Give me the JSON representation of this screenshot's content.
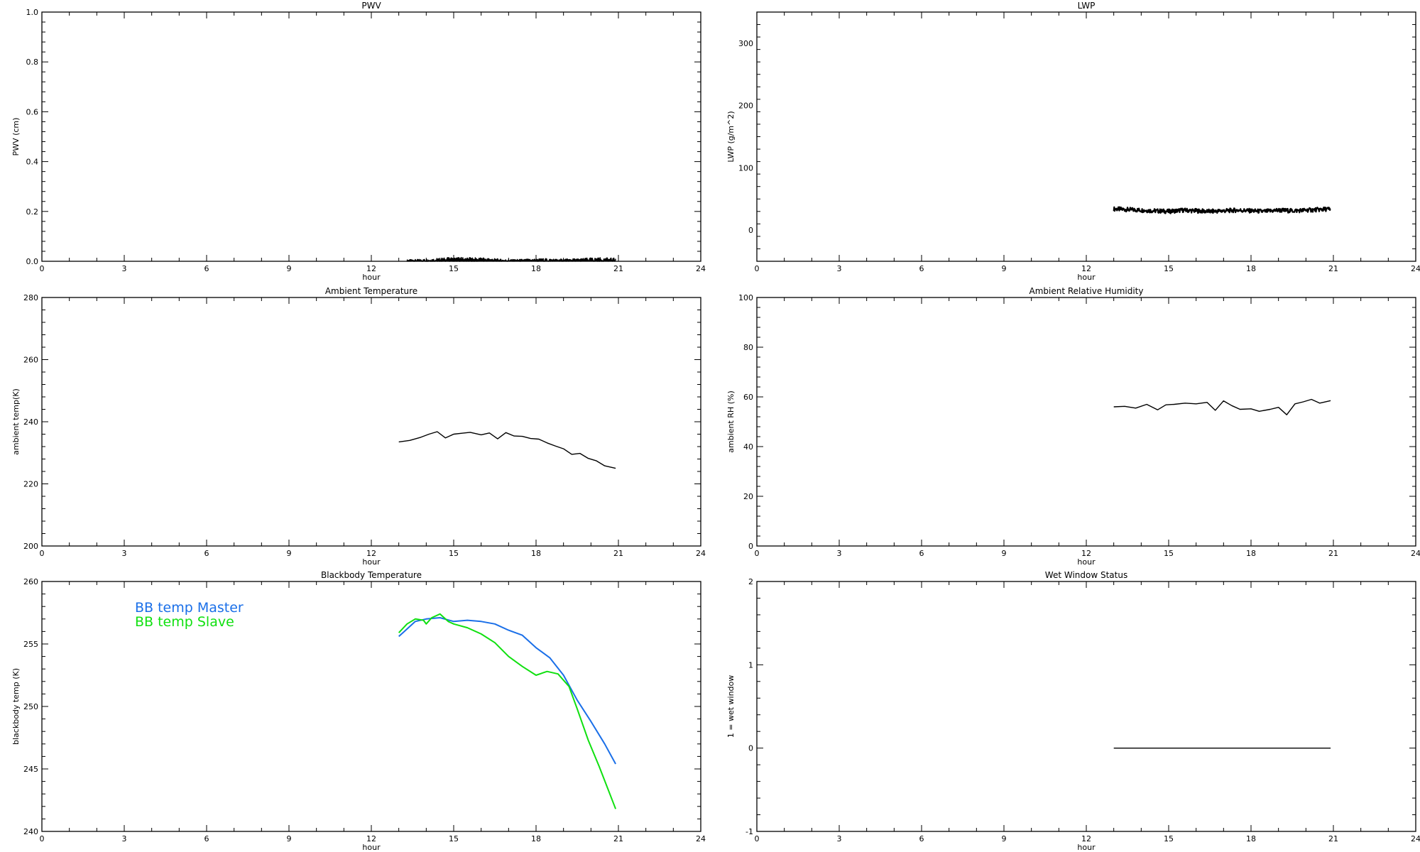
{
  "chart_data": [
    {
      "type": "line",
      "title": "PWV",
      "xlabel": "hour",
      "ylabel": "PWV (cm)",
      "xlim": [
        0,
        24
      ],
      "ylim": [
        0.0,
        1.0
      ],
      "xticks": [
        0,
        3,
        6,
        9,
        12,
        15,
        18,
        21,
        24
      ],
      "yticks": [
        0.0,
        0.2,
        0.4,
        0.6,
        0.8,
        1.0
      ],
      "ytick_labels": [
        "0.0",
        "0.2",
        "0.4",
        "0.6",
        "0.8",
        "1.0"
      ],
      "series": [
        {
          "color": "#000000",
          "style": "noisy",
          "x": [
            13.3,
            13.6,
            14.0,
            14.4,
            14.8,
            15.2,
            15.6,
            16.0,
            16.4,
            16.8,
            17.2,
            17.6,
            18.0,
            18.4,
            18.8,
            19.2,
            19.6,
            20.0,
            20.4,
            20.9
          ],
          "y": [
            0.005,
            0.006,
            0.007,
            0.01,
            0.012,
            0.013,
            0.012,
            0.011,
            0.01,
            0.006,
            0.006,
            0.007,
            0.008,
            0.009,
            0.007,
            0.008,
            0.009,
            0.011,
            0.012,
            0.01
          ]
        }
      ]
    },
    {
      "type": "line",
      "title": "LWP",
      "xlabel": "hour",
      "ylabel": "LWP (g/m^2)",
      "xlim": [
        0,
        24
      ],
      "ylim": [
        -50,
        350
      ],
      "xticks": [
        0,
        3,
        6,
        9,
        12,
        15,
        18,
        21,
        24
      ],
      "yticks": [
        0,
        100,
        200,
        300
      ],
      "ytick_labels": [
        "0",
        "100",
        "200",
        "300"
      ],
      "series": [
        {
          "color": "#000000",
          "style": "noisy-thick",
          "x": [
            13.0,
            13.5,
            14.0,
            14.5,
            15.0,
            15.5,
            16.0,
            16.5,
            17.0,
            17.5,
            18.0,
            18.5,
            19.0,
            19.5,
            20.0,
            20.5,
            20.9
          ],
          "y": [
            34,
            33,
            32,
            31,
            30,
            32,
            31,
            30,
            31,
            32,
            31,
            30,
            32,
            31,
            32,
            33,
            34
          ]
        }
      ]
    },
    {
      "type": "line",
      "title": "Ambient Temperature",
      "xlabel": "hour",
      "ylabel": "ambient temp(K)",
      "xlim": [
        0,
        24
      ],
      "ylim": [
        200,
        280
      ],
      "xticks": [
        0,
        3,
        6,
        9,
        12,
        15,
        18,
        21,
        24
      ],
      "yticks": [
        200,
        220,
        240,
        260,
        280
      ],
      "ytick_labels": [
        "200",
        "220",
        "240",
        "260",
        "280"
      ],
      "series": [
        {
          "color": "#000000",
          "x": [
            13.0,
            13.4,
            13.8,
            14.1,
            14.4,
            14.7,
            15.0,
            15.3,
            15.6,
            16.0,
            16.3,
            16.6,
            16.9,
            17.2,
            17.5,
            17.8,
            18.1,
            18.4,
            18.7,
            19.0,
            19.3,
            19.6,
            19.9,
            20.2,
            20.5,
            20.9
          ],
          "y": [
            233.5,
            234.0,
            235.0,
            236.0,
            236.8,
            234.8,
            236.0,
            236.3,
            236.6,
            235.8,
            236.4,
            234.5,
            236.5,
            235.4,
            235.3,
            234.6,
            234.4,
            233.2,
            232.2,
            231.3,
            229.5,
            229.8,
            228.2,
            227.4,
            225.8,
            225.0
          ]
        }
      ]
    },
    {
      "type": "line",
      "title": "Ambient Relative Humidity",
      "xlabel": "hour",
      "ylabel": "ambient RH (%)",
      "xlim": [
        0,
        24
      ],
      "ylim": [
        0,
        100
      ],
      "xticks": [
        0,
        3,
        6,
        9,
        12,
        15,
        18,
        21,
        24
      ],
      "yticks": [
        0,
        20,
        40,
        60,
        80,
        100
      ],
      "ytick_labels": [
        "0",
        "20",
        "40",
        "60",
        "80",
        "100"
      ],
      "series": [
        {
          "color": "#000000",
          "x": [
            13.0,
            13.4,
            13.8,
            14.2,
            14.6,
            14.9,
            15.2,
            15.6,
            16.0,
            16.4,
            16.7,
            17.0,
            17.3,
            17.6,
            18.0,
            18.3,
            18.7,
            19.0,
            19.3,
            19.6,
            19.9,
            20.2,
            20.5,
            20.9
          ],
          "y": [
            56.0,
            56.2,
            55.5,
            57.0,
            54.8,
            56.8,
            57.0,
            57.5,
            57.2,
            57.8,
            54.6,
            58.4,
            56.5,
            55.0,
            55.2,
            54.2,
            55.0,
            55.8,
            52.8,
            57.2,
            58.0,
            59.0,
            57.5,
            58.5
          ]
        }
      ]
    },
    {
      "type": "line",
      "title": "Blackbody Temperature",
      "xlabel": "hour",
      "ylabel": "blackbody temp (K)",
      "xlim": [
        0,
        24
      ],
      "ylim": [
        240,
        260
      ],
      "xticks": [
        0,
        3,
        6,
        9,
        12,
        15,
        18,
        21,
        24
      ],
      "yticks": [
        240,
        245,
        250,
        255,
        260
      ],
      "ytick_labels": [
        "240",
        "245",
        "250",
        "255",
        "260"
      ],
      "series": [
        {
          "name": "BB temp Master",
          "color": "#1a6fe8",
          "x": [
            13.0,
            13.3,
            13.6,
            14.0,
            14.5,
            15.0,
            15.5,
            16.0,
            16.5,
            17.0,
            17.5,
            18.0,
            18.5,
            19.0,
            19.5,
            20.0,
            20.5,
            20.9
          ],
          "y": [
            255.6,
            256.2,
            256.8,
            257.0,
            257.1,
            256.8,
            256.9,
            256.8,
            256.6,
            256.1,
            255.7,
            254.7,
            253.9,
            252.5,
            250.5,
            248.8,
            247.0,
            245.4
          ]
        },
        {
          "name": "BB temp Slave",
          "color": "#10e010",
          "x": [
            13.0,
            13.3,
            13.6,
            13.9,
            14.0,
            14.2,
            14.5,
            14.8,
            15.0,
            15.5,
            16.0,
            16.5,
            17.0,
            17.5,
            18.0,
            18.4,
            18.8,
            19.2,
            19.5,
            19.9,
            20.3,
            20.6,
            20.9
          ],
          "y": [
            255.9,
            256.6,
            257.0,
            256.9,
            256.6,
            257.1,
            257.4,
            256.8,
            256.6,
            256.3,
            255.8,
            255.1,
            254.0,
            253.2,
            252.5,
            252.8,
            252.6,
            251.6,
            249.8,
            247.3,
            245.2,
            243.5,
            241.8
          ]
        }
      ],
      "legend_position": "top-left"
    },
    {
      "type": "line",
      "title": "Wet Window Status",
      "xlabel": "hour",
      "ylabel": "1 = wet window",
      "xlim": [
        0,
        24
      ],
      "ylim": [
        -1,
        2
      ],
      "xticks": [
        0,
        3,
        6,
        9,
        12,
        15,
        18,
        21,
        24
      ],
      "yticks": [
        -1,
        0,
        1,
        2
      ],
      "ytick_labels": [
        "-1",
        "0",
        "1",
        "2"
      ],
      "series": [
        {
          "color": "#000000",
          "x": [
            13.0,
            20.9
          ],
          "y": [
            0,
            0
          ]
        }
      ]
    }
  ]
}
